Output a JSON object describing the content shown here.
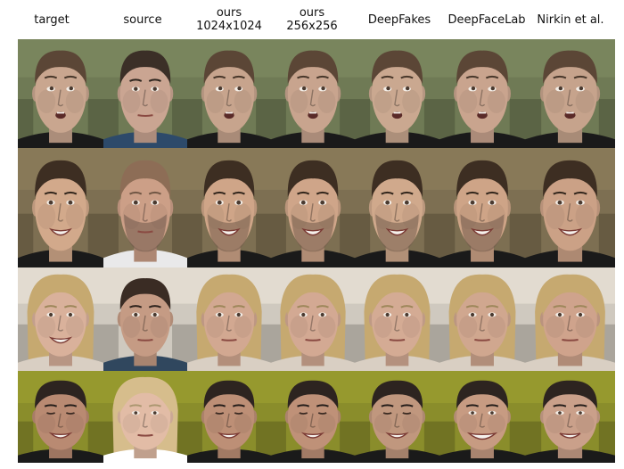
{
  "columns": [
    {
      "lines": [
        "target"
      ]
    },
    {
      "lines": [
        "source"
      ]
    },
    {
      "lines": [
        "ours",
        "1024x1024"
      ]
    },
    {
      "lines": [
        "ours",
        "256x256"
      ]
    },
    {
      "lines": [
        "DeepFakes"
      ]
    },
    {
      "lines": [
        "DeepFaceLab"
      ]
    },
    {
      "lines": [
        "Nirkin et al."
      ]
    }
  ],
  "rows": [
    {
      "background": "#6f7a55",
      "cells": [
        {
          "skin": "#c9a68f",
          "hair": "#5b4636",
          "shirt": "#1a1a1a",
          "expression": "surprised"
        },
        {
          "skin": "#caa592",
          "hair": "#3b2f27",
          "shirt": "#2d4a6a",
          "expression": "neutral"
        },
        {
          "skin": "#c7a48d",
          "hair": "#5b4636",
          "shirt": "#1a1a1a",
          "expression": "surprised"
        },
        {
          "skin": "#c8a48e",
          "hair": "#5b4636",
          "shirt": "#1a1a1a",
          "expression": "surprised"
        },
        {
          "skin": "#caa890",
          "hair": "#5b4636",
          "shirt": "#1a1a1a",
          "expression": "surprised"
        },
        {
          "skin": "#c9a48e",
          "hair": "#5b4636",
          "shirt": "#1a1a1a",
          "expression": "surprised"
        },
        {
          "skin": "#c6a38c",
          "hair": "#5b4636",
          "shirt": "#1a1a1a",
          "expression": "surprised"
        }
      ]
    },
    {
      "background": "#7d6f52",
      "cells": [
        {
          "skin": "#d2a98b",
          "hair": "#3d2e22",
          "shirt": "#1a1a1a",
          "expression": "smile"
        },
        {
          "skin": "#cc9f87",
          "hair": "#8d6d56",
          "shirt": "#e9e9ea",
          "expression": "neutral-beard"
        },
        {
          "skin": "#cfa588",
          "hair": "#3d2e22",
          "shirt": "#1a1a1a",
          "expression": "smile-beard"
        },
        {
          "skin": "#cfa589",
          "hair": "#3d2e22",
          "shirt": "#1a1a1a",
          "expression": "smile-beard"
        },
        {
          "skin": "#d0a98c",
          "hair": "#3d2e22",
          "shirt": "#1a1a1a",
          "expression": "smile-beard"
        },
        {
          "skin": "#cea487",
          "hair": "#3d2e22",
          "shirt": "#1a1a1a",
          "expression": "smile-beard"
        },
        {
          "skin": "#cba186",
          "hair": "#3d2e22",
          "shirt": "#1a1a1a",
          "expression": "smile"
        }
      ]
    },
    {
      "background": "#cfc9bf",
      "cells": [
        {
          "skin": "#d9b19b",
          "hair": "#c6a970",
          "shirt": "#d9cfc3",
          "expression": "smile-long-hair"
        },
        {
          "skin": "#c59b84",
          "hair": "#3a2c24",
          "shirt": "#30475e",
          "expression": "neutral"
        },
        {
          "skin": "#d2a891",
          "hair": "#c6a970",
          "shirt": "#d9cfc3",
          "expression": "neutral-long-hair"
        },
        {
          "skin": "#d3a993",
          "hair": "#c6a970",
          "shirt": "#d9cfc3",
          "expression": "neutral-long-hair"
        },
        {
          "skin": "#d4ab94",
          "hair": "#c6a970",
          "shirt": "#d9cfc3",
          "expression": "neutral-long-hair"
        },
        {
          "skin": "#d0a78f",
          "hair": "#c6a970",
          "shirt": "#d9cfc3",
          "expression": "neutral-long-hair"
        },
        {
          "skin": "#cfa38c",
          "hair": "#c6a970",
          "shirt": "#d9cfc3",
          "expression": "neutral-long-hair"
        }
      ]
    },
    {
      "background": "#8a8d2b",
      "cells": [
        {
          "skin": "#b98a72",
          "hair": "#2d2420",
          "shirt": "#1a1a1a",
          "expression": "squint-smile"
        },
        {
          "skin": "#e2bca6",
          "hair": "#d6bd8c",
          "shirt": "#ffffff",
          "expression": "neutral-long-hair"
        },
        {
          "skin": "#bd8f76",
          "hair": "#2d2420",
          "shirt": "#1a1a1a",
          "expression": "squint-smile"
        },
        {
          "skin": "#bf9178",
          "hair": "#2d2420",
          "shirt": "#1a1a1a",
          "expression": "squint-smile"
        },
        {
          "skin": "#c0977e",
          "hair": "#2d2420",
          "shirt": "#1a1a1a",
          "expression": "squint-smile"
        },
        {
          "skin": "#c79b82",
          "hair": "#2d2420",
          "shirt": "#1a1a1a",
          "expression": "wide-smile"
        },
        {
          "skin": "#caa08a",
          "hair": "#2d2420",
          "shirt": "#1a1a1a",
          "expression": "smile"
        }
      ]
    }
  ]
}
